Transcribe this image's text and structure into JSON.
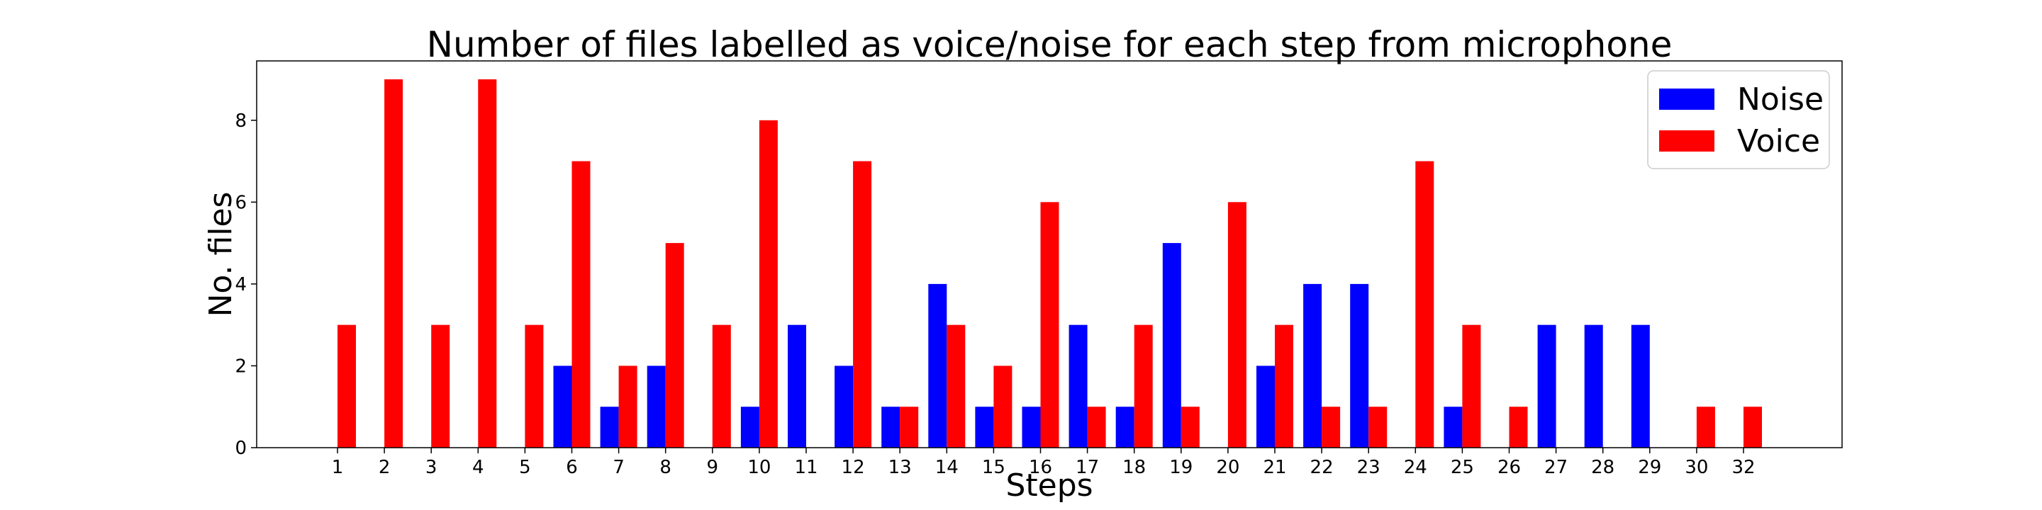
{
  "chart_data": {
    "type": "bar",
    "title": "Number of files labelled as voice/noise for each step from microphone",
    "xlabel": "Steps",
    "ylabel": "No. files",
    "ylim": [
      0,
      9.45
    ],
    "yticks": [
      0,
      2,
      4,
      6,
      8
    ],
    "grid": false,
    "legend_position": "top-right",
    "categories": [
      "1",
      "2",
      "3",
      "4",
      "5",
      "6",
      "7",
      "8",
      "9",
      "10",
      "11",
      "12",
      "13",
      "14",
      "15",
      "16",
      "17",
      "18",
      "19",
      "20",
      "21",
      "22",
      "23",
      "24",
      "25",
      "26",
      "27",
      "28",
      "29",
      "30",
      "32"
    ],
    "series": [
      {
        "name": "Noise",
        "color": "#0000ff",
        "values": [
          0,
          0,
          0,
          0,
          0,
          2,
          1,
          2,
          0,
          1,
          3,
          2,
          1,
          4,
          1,
          1,
          3,
          1,
          5,
          0,
          2,
          4,
          4,
          0,
          1,
          0,
          3,
          3,
          3,
          0,
          0
        ]
      },
      {
        "name": "Voice",
        "color": "#ff0000",
        "values": [
          3,
          9,
          3,
          9,
          3,
          7,
          2,
          5,
          3,
          8,
          0,
          7,
          1,
          3,
          2,
          6,
          1,
          3,
          1,
          6,
          3,
          1,
          1,
          7,
          3,
          1,
          0,
          0,
          0,
          1,
          1
        ]
      }
    ]
  }
}
